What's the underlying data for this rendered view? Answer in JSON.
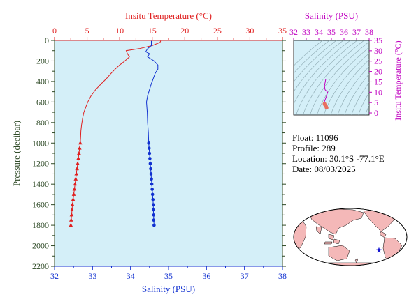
{
  "chart_data": [
    {
      "type": "line",
      "xlabel_top": "Insitu Temperature (°C)",
      "xlabel_bottom": "Salinity (PSU)",
      "ylabel": "Pressure (decibar)",
      "temp_axis": {
        "range": [
          0,
          35
        ],
        "ticks": [
          "0",
          "5",
          "10",
          "15",
          "20",
          "25",
          "30",
          "35"
        ]
      },
      "sal_axis": {
        "range": [
          32,
          38
        ],
        "ticks": [
          "32",
          "33",
          "34",
          "35",
          "36",
          "37",
          "38"
        ]
      },
      "pressure_axis": {
        "range": [
          0,
          2200
        ],
        "reversed": true,
        "ticks": [
          "0",
          "200",
          "400",
          "600",
          "800",
          "1000",
          "1200",
          "1400",
          "1600",
          "1800",
          "2000",
          "2200"
        ]
      },
      "series": [
        {
          "name": "temperature",
          "color": "#e02020",
          "marker": "triangle",
          "points": [
            [
              16.3,
              5
            ],
            [
              16.2,
              20
            ],
            [
              15.0,
              50
            ],
            [
              13.0,
              80
            ],
            [
              11.0,
              100
            ],
            [
              11.2,
              130
            ],
            [
              11.5,
              160
            ],
            [
              10.8,
              200
            ],
            [
              10.0,
              240
            ],
            [
              9.3,
              280
            ],
            [
              8.7,
              320
            ],
            [
              8.0,
              370
            ],
            [
              7.2,
              420
            ],
            [
              6.3,
              480
            ],
            [
              5.6,
              540
            ],
            [
              5.1,
              600
            ],
            [
              4.8,
              650
            ],
            [
              4.5,
              700
            ],
            [
              4.3,
              760
            ],
            [
              4.15,
              820
            ],
            [
              4.05,
              880
            ],
            [
              4.0,
              940
            ],
            [
              3.95,
              1000
            ],
            [
              3.85,
              1050
            ],
            [
              3.75,
              1100
            ],
            [
              3.65,
              1150
            ],
            [
              3.55,
              1200
            ],
            [
              3.45,
              1250
            ],
            [
              3.35,
              1300
            ],
            [
              3.25,
              1350
            ],
            [
              3.15,
              1400
            ],
            [
              3.05,
              1450
            ],
            [
              2.95,
              1500
            ],
            [
              2.85,
              1550
            ],
            [
              2.75,
              1600
            ],
            [
              2.68,
              1650
            ],
            [
              2.62,
              1700
            ],
            [
              2.55,
              1750
            ],
            [
              2.5,
              1800
            ]
          ],
          "marker_from": 1000
        },
        {
          "name": "salinity",
          "color": "#1030d0",
          "marker": "circle",
          "points": [
            [
              34.55,
              5
            ],
            [
              34.55,
              50
            ],
            [
              34.45,
              80
            ],
            [
              34.4,
              110
            ],
            [
              34.5,
              130
            ],
            [
              34.45,
              160
            ],
            [
              34.62,
              200
            ],
            [
              34.72,
              240
            ],
            [
              34.72,
              280
            ],
            [
              34.65,
              320
            ],
            [
              34.6,
              370
            ],
            [
              34.55,
              420
            ],
            [
              34.5,
              480
            ],
            [
              34.45,
              540
            ],
            [
              34.42,
              600
            ],
            [
              34.44,
              700
            ],
            [
              34.45,
              800
            ],
            [
              34.47,
              900
            ],
            [
              34.48,
              1000
            ],
            [
              34.49,
              1050
            ],
            [
              34.5,
              1100
            ],
            [
              34.51,
              1150
            ],
            [
              34.52,
              1200
            ],
            [
              34.53,
              1250
            ],
            [
              34.54,
              1300
            ],
            [
              34.55,
              1350
            ],
            [
              34.56,
              1400
            ],
            [
              34.57,
              1450
            ],
            [
              34.58,
              1500
            ],
            [
              34.59,
              1550
            ],
            [
              34.6,
              1600
            ],
            [
              34.6,
              1650
            ],
            [
              34.61,
              1700
            ],
            [
              34.61,
              1750
            ],
            [
              34.62,
              1800
            ]
          ],
          "marker_from": 1000
        }
      ]
    },
    {
      "type": "scatter",
      "xlabel": "Salinity (PSU)",
      "ylabel": "Insitu Temperature (°C)",
      "x_axis": {
        "range": [
          32,
          38
        ],
        "ticks": [
          "32",
          "33",
          "34",
          "35",
          "36",
          "37",
          "38"
        ]
      },
      "y_axis": {
        "range": [
          -1,
          35
        ],
        "ticks": [
          "0",
          "5",
          "10",
          "15",
          "20",
          "25",
          "30",
          "35"
        ]
      },
      "ts_points": [
        [
          34.55,
          16.3
        ],
        [
          34.45,
          13.0
        ],
        [
          34.5,
          11.2
        ],
        [
          34.7,
          10.0
        ],
        [
          34.6,
          8.0
        ],
        [
          34.5,
          6.3
        ],
        [
          34.42,
          5.1
        ],
        [
          34.45,
          4.5
        ],
        [
          34.48,
          4.0
        ],
        [
          34.55,
          3.4
        ],
        [
          34.6,
          2.8
        ],
        [
          34.62,
          2.5
        ]
      ]
    }
  ],
  "float_info": {
    "float": "Float:  11096",
    "profile": "Profile:  289",
    "location": "Location:  30.1°S  -77.1°E",
    "date": "Date:  08/03/2025"
  },
  "colors": {
    "plot_bg": "#d4eff8",
    "temperature": "#e02020",
    "salinity": "#1030d0",
    "ts_axis": "#c000c0",
    "pressure_axis": "#2e4a26",
    "land": "#f4b8b8",
    "ocean": "#ffffff",
    "marker": "#1010d0"
  },
  "map": {
    "marker_icon": "star-icon"
  }
}
